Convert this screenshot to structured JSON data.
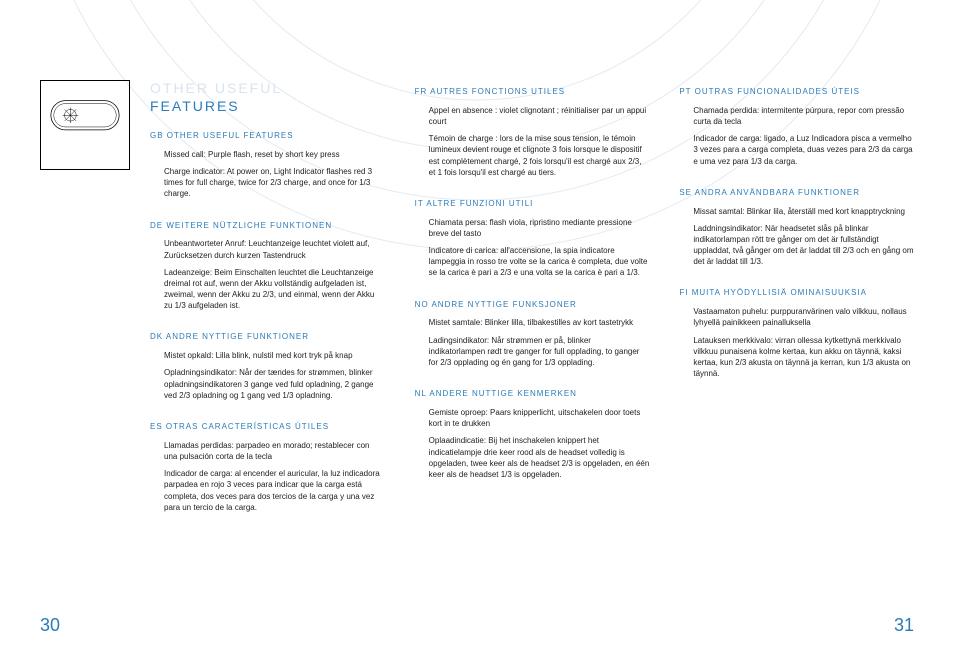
{
  "colors": {
    "accent": "#2a7bb8",
    "text": "#222222",
    "title_ghost": "#d9e4ef",
    "arc": "#3a7bb8"
  },
  "typography": {
    "title_fontsize": 14,
    "heading_fontsize": 8,
    "body_fontsize": 8,
    "title_letterspacing": 2
  },
  "main_title_ghost": "OTHER USEFUL",
  "main_title": "FEATURES",
  "page_left": "30",
  "page_right": "31",
  "columns": [
    [
      {
        "code": "GB",
        "title": "OTHER USEFUL FEATURES",
        "paras": [
          "Missed call: Purple flash, reset by short key press",
          "Charge indicator: At power on, Light Indicator flashes red 3 times for full charge, twice for 2/3 charge, and once for 1/3 charge."
        ]
      },
      {
        "code": "DE",
        "title": "WEITERE NÜTZLICHE FUNKTIONEN",
        "paras": [
          "Unbeantworteter Anruf: Leuchtanzeige leuchtet violett auf, Zurücksetzen durch kurzen Tastendruck",
          "Ladeanzeige: Beim Einschalten leuchtet die Leuchtanzeige dreimal rot auf, wenn der Akku vollständig aufgeladen ist, zweimal, wenn der Akku zu 2/3, und einmal, wenn der Akku zu 1/3 aufgeladen ist."
        ]
      },
      {
        "code": "DK",
        "title": "ANDRE NYTTIGE FUNKTIONER",
        "paras": [
          "Mistet opkald: Lilla blink, nulstil med kort tryk på knap",
          "Opladningsindikator: Når der tændes for strømmen, blinker opladningsindikatoren 3 gange ved fuld opladning, 2 gange ved 2/3 opladning og 1 gang ved 1/3 opladning."
        ]
      },
      {
        "code": "ES",
        "title": "OTRAS CARACTERÍSTICAS ÚTILES",
        "paras": [
          "Llamadas perdidas: parpadeo en morado; restablecer con una pulsación corta de la tecla",
          "Indicador de carga: al encender el auricular, la luz indicadora parpadea en rojo 3 veces para indicar que la carga está completa, dos veces para dos tercios de la carga y una vez para un tercio de la carga."
        ]
      }
    ],
    [
      {
        "code": "FR",
        "title": "AUTRES FONCTIONS UTILES",
        "paras": [
          "Appel en absence : violet clignotant ; réinitialiser par un appui court",
          "Témoin de charge : lors de la mise sous tension, le témoin lumineux devient rouge et clignote 3 fois lorsque le dispositif est complètement chargé, 2 fois lorsqu'il est chargé aux 2/3, et 1 fois lorsqu'il est chargé au tiers."
        ]
      },
      {
        "code": "IT",
        "title": "ALTRE FUNZIONI UTILI",
        "paras": [
          "Chiamata persa: flash viola, ripristino mediante pressione breve del tasto",
          "Indicatore di carica: all'accensione, la spia indicatore lampeggia in rosso tre volte se la carica è completa, due volte se la carica è pari a 2/3 e una volta se la carica è pari a 1/3."
        ]
      },
      {
        "code": "NO",
        "title": "ANDRE NYTTIGE FUNKSJONER",
        "paras": [
          "Mistet samtale: Blinker lilla, tilbakestilles av kort tastetrykk",
          "Ladingsindikator: Når strømmen er på, blinker indikatorlampen rødt tre ganger for full opplading, to ganger for 2/3 opplading og én gang for 1/3 opplading."
        ]
      },
      {
        "code": "NL",
        "title": "ANDERE NUTTIGE KENMERKEN",
        "paras": [
          "Gemiste oproep: Paars knipperlicht, uitschakelen door toets kort in te drukken",
          "Oplaadindicatie: Bij het inschakelen knippert het indicatielampje drie keer rood als de headset volledig is opgeladen, twee keer als de headset 2/3 is opgeladen, en één keer als de headset 1/3 is opgeladen."
        ]
      }
    ],
    [
      {
        "code": "PT",
        "title": "OUTRAS FUNCIONALIDADES ÚTEIS",
        "paras": [
          "Chamada perdida: intermitente púrpura, repor com pressão curta da tecla",
          "Indicador de carga: ligado, a Luz Indicadora pisca a vermelho 3 vezes para a carga completa, duas vezes para 2/3 da carga e uma vez para 1/3 da carga."
        ]
      },
      {
        "code": "SE",
        "title": "ANDRA ANVÄNDBARA FUNKTIONER",
        "paras": [
          "Missat samtal: Blinkar lila, återställ med kort knapptryckning",
          "Laddningsindikator: När headsetet slås på blinkar indikatorlampan rött tre gånger om det är fullständigt uppladdat, två gånger om det är laddat till 2/3 och en gång om det är laddat till 1/3."
        ]
      },
      {
        "code": "FI",
        "title": "MUITA HYÖDYLLISIÄ OMINAISUUKSIA",
        "paras": [
          "Vastaamaton puhelu: purppuranvärinen valo vilkkuu, nollaus lyhyellä painikkeen painalluksella",
          "Latauksen merkkivalo: virran ollessa kytkettynä merkkivalo vilkkuu punaisena kolme kertaa, kun akku on täynnä, kaksi kertaa, kun 2/3 akusta on täynnä ja kerran, kun 1/3 akusta on täynnä."
        ]
      }
    ]
  ]
}
